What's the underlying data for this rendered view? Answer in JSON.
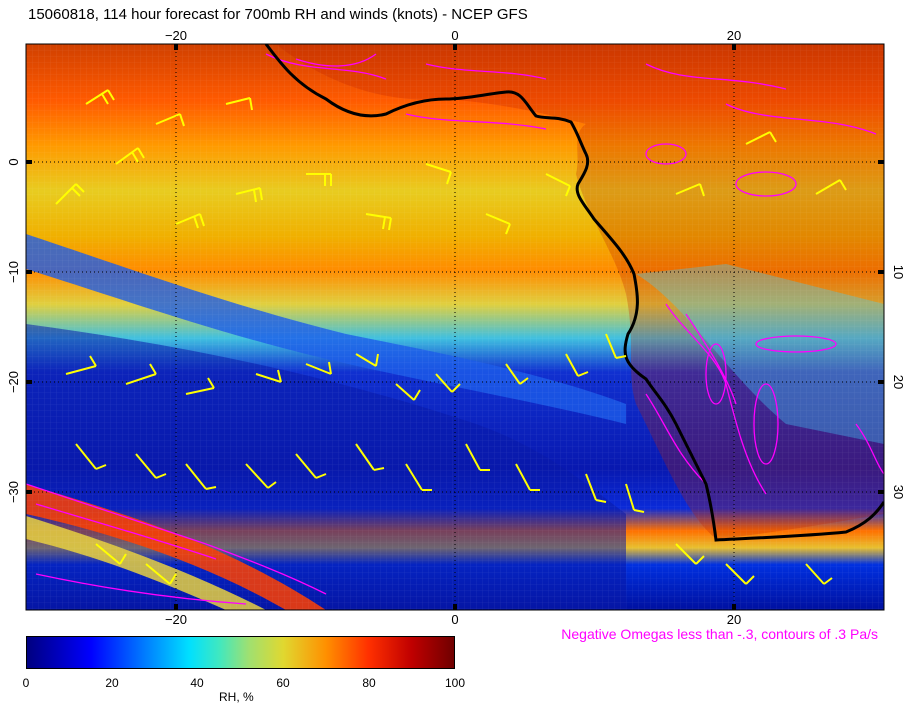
{
  "title": "15060818, 114 hour forecast for 700mb RH and winds (knots) - NCEP GFS",
  "axes": {
    "lon_ticks": [
      "−20",
      "0",
      "20"
    ],
    "lat_ticks": [
      "0",
      "−10",
      "−20",
      "−30"
    ],
    "lat_ticks_right": [
      "10",
      "20",
      "30"
    ]
  },
  "colorbar": {
    "ticks": [
      "0",
      "20",
      "40",
      "60",
      "80",
      "100"
    ],
    "label": "RH, %"
  },
  "note": "Negative Omegas less than -.3, contours of .3 Pa/s",
  "colors": {
    "barbs": "#ffff00",
    "omega_contours": "#ff00ff",
    "coastline": "#000000"
  }
}
